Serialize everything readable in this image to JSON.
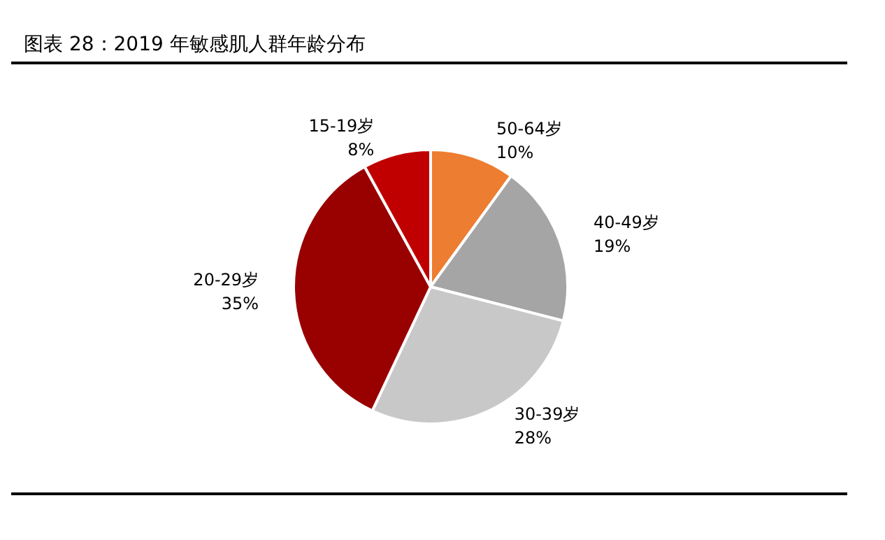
{
  "chart_data": {
    "type": "pie",
    "title": "图表 28：2019 年敏感肌人群年龄分布",
    "categories": [
      "50-64岁",
      "40-49岁",
      "30-39岁",
      "20-29岁",
      "15-19岁"
    ],
    "values": [
      10,
      19,
      28,
      35,
      8
    ],
    "colors": [
      "#ed7d31",
      "#a5a5a5",
      "#c8c8c8",
      "#990000",
      "#c00000"
    ],
    "value_labels": [
      "10%",
      "19%",
      "28%",
      "35%",
      "8%"
    ],
    "legend": false
  }
}
